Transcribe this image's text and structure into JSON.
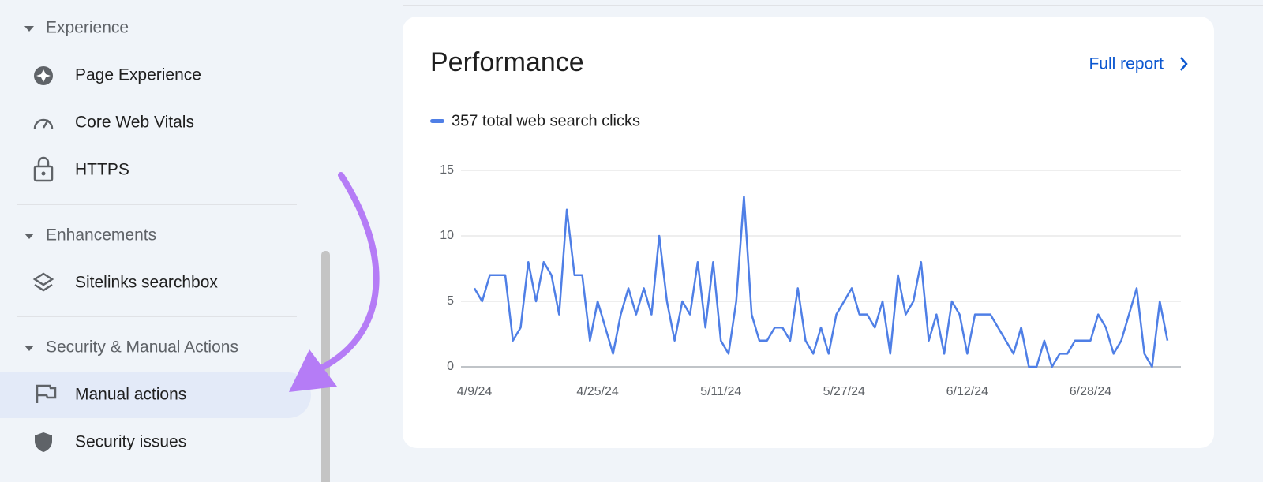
{
  "sidebar": {
    "sections": [
      {
        "title": "Experience",
        "items": [
          "Page Experience",
          "Core Web Vitals",
          "HTTPS"
        ]
      },
      {
        "title": "Enhancements",
        "items": [
          "Sitelinks searchbox"
        ]
      },
      {
        "title": "Security & Manual Actions",
        "items": [
          "Manual actions",
          "Security issues"
        ]
      }
    ]
  },
  "chart_data": {
    "type": "line",
    "title": "Performance",
    "link": "Full report",
    "x": [
      "4/9/24",
      "4/10/24",
      "4/11/24",
      "4/12/24",
      "4/13/24",
      "4/14/24",
      "4/15/24",
      "4/16/24",
      "4/17/24",
      "4/18/24",
      "4/19/24",
      "4/20/24",
      "4/21/24",
      "4/22/24",
      "4/23/24",
      "4/24/24",
      "4/25/24",
      "4/26/24",
      "4/27/24",
      "4/28/24",
      "4/29/24",
      "4/30/24",
      "5/1/24",
      "5/2/24",
      "5/3/24",
      "5/4/24",
      "5/5/24",
      "5/6/24",
      "5/7/24",
      "5/8/24",
      "5/9/24",
      "5/10/24",
      "5/11/24",
      "5/12/24",
      "5/13/24",
      "5/14/24",
      "5/15/24",
      "5/16/24",
      "5/17/24",
      "5/18/24",
      "5/19/24",
      "5/20/24",
      "5/21/24",
      "5/22/24",
      "5/23/24",
      "5/24/24",
      "5/25/24",
      "5/26/24",
      "5/27/24",
      "5/28/24",
      "5/29/24",
      "5/30/24",
      "5/31/24",
      "6/1/24",
      "6/2/24",
      "6/3/24",
      "6/4/24",
      "6/5/24",
      "6/6/24",
      "6/7/24",
      "6/8/24",
      "6/9/24",
      "6/10/24",
      "6/11/24",
      "6/12/24",
      "6/13/24",
      "6/14/24",
      "6/15/24",
      "6/16/24",
      "6/17/24",
      "6/18/24",
      "6/19/24",
      "6/20/24",
      "6/21/24",
      "6/22/24",
      "6/23/24",
      "6/24/24",
      "6/25/24",
      "6/26/24",
      "6/27/24",
      "6/28/24",
      "6/29/24",
      "6/30/24",
      "7/1/24",
      "7/2/24",
      "7/3/24",
      "7/4/24",
      "7/5/24",
      "7/6/24",
      "7/7/24",
      "7/8/24"
    ],
    "series": [
      {
        "name": "357 total web search clicks",
        "color": "#4f7fe6",
        "values": [
          6,
          5,
          7,
          7,
          7,
          2,
          3,
          8,
          5,
          8,
          7,
          4,
          12,
          7,
          7,
          2,
          5,
          3,
          1,
          4,
          6,
          4,
          6,
          4,
          10,
          5,
          2,
          5,
          4,
          8,
          3,
          8,
          2,
          1,
          5,
          13,
          4,
          2,
          2,
          3,
          3,
          2,
          6,
          2,
          1,
          3,
          1,
          4,
          5,
          6,
          4,
          4,
          3,
          5,
          1,
          7,
          4,
          5,
          8,
          2,
          4,
          1,
          5,
          4,
          1,
          4,
          4,
          4,
          3,
          2,
          1,
          3,
          0,
          0,
          2,
          0,
          1,
          1,
          2,
          2,
          2,
          4,
          3,
          1,
          2,
          4,
          6,
          1,
          0,
          5,
          2
        ]
      }
    ],
    "xticks": [
      "4/9/24",
      "4/25/24",
      "5/11/24",
      "5/27/24",
      "6/12/24",
      "6/28/24"
    ],
    "ylim": [
      0,
      15
    ],
    "yticks": [
      0,
      5,
      10,
      15
    ],
    "grid": true
  }
}
